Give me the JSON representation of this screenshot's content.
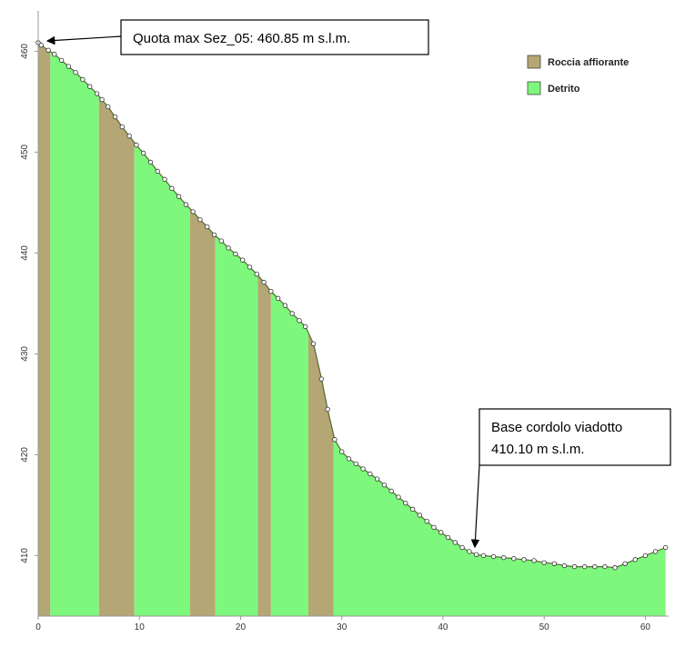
{
  "chart_data": {
    "type": "profile",
    "xlim": [
      0,
      62.3
    ],
    "ylim": [
      404,
      464
    ],
    "xticks": [
      0,
      10,
      20,
      30,
      40,
      50,
      60
    ],
    "yticks": [
      410,
      420,
      430,
      440,
      450,
      460
    ],
    "series": [
      {
        "name": "Roccia affiorante",
        "color": "#b5a675"
      },
      {
        "name": "Detrito",
        "color": "#7df87c"
      }
    ],
    "zones": [
      {
        "series": 0,
        "x": [
          0,
          1.2
        ]
      },
      {
        "series": 1,
        "x": [
          1.2,
          6
        ]
      },
      {
        "series": 0,
        "x": [
          6,
          9.5
        ]
      },
      {
        "series": 1,
        "x": [
          9.5,
          15
        ]
      },
      {
        "series": 0,
        "x": [
          15,
          17.5
        ]
      },
      {
        "series": 1,
        "x": [
          17.5,
          21.7
        ]
      },
      {
        "series": 0,
        "x": [
          21.7,
          23
        ]
      },
      {
        "series": 1,
        "x": [
          23,
          26.7
        ]
      },
      {
        "series": 0,
        "x": [
          26.7,
          29.2
        ]
      },
      {
        "series": 1,
        "x": [
          29.2,
          62.3
        ]
      }
    ],
    "profile": {
      "x": [
        0,
        0.3,
        1,
        1.6,
        2.3,
        3,
        3.7,
        4.4,
        5.1,
        5.8,
        6.3,
        6.9,
        7.6,
        8.3,
        9,
        9.7,
        10.4,
        11.1,
        11.8,
        12.5,
        13.2,
        13.9,
        14.6,
        15.3,
        16,
        16.7,
        17.4,
        18.1,
        18.8,
        19.5,
        20.2,
        20.9,
        21.6,
        22.3,
        23,
        23.7,
        24.4,
        25.1,
        25.8,
        26.4,
        27.2,
        28,
        28.6,
        29.3,
        30,
        30.7,
        31.4,
        32.1,
        32.8,
        33.5,
        34.2,
        34.9,
        35.6,
        36.3,
        37,
        37.7,
        38.4,
        39.1,
        39.8,
        40.5,
        41.2,
        41.9,
        42.6,
        43.3,
        44,
        45,
        46,
        47,
        48,
        49,
        50,
        51,
        52,
        53,
        54,
        55,
        56,
        57,
        58,
        59,
        60,
        61,
        62
      ],
      "y": [
        460.85,
        460.6,
        460.1,
        459.7,
        459.1,
        458.5,
        457.9,
        457.2,
        456.5,
        455.8,
        455.2,
        454.5,
        453.5,
        452.5,
        451.6,
        450.7,
        449.9,
        449,
        448.1,
        447.3,
        446.4,
        445.6,
        444.8,
        444.1,
        443.3,
        442.6,
        441.8,
        441.2,
        440.5,
        439.9,
        439.3,
        438.6,
        437.9,
        437.1,
        436.2,
        435.5,
        434.8,
        434,
        433.3,
        432.7,
        431,
        427.5,
        424.5,
        421.5,
        420.3,
        419.6,
        419.1,
        418.6,
        418.1,
        417.6,
        417,
        416.4,
        415.8,
        415.2,
        414.6,
        414,
        413.4,
        412.8,
        412.3,
        411.8,
        411.3,
        410.8,
        410.4,
        410.1,
        410,
        409.9,
        409.8,
        409.7,
        409.6,
        409.5,
        409.3,
        409.2,
        409,
        408.9,
        408.9,
        408.9,
        408.9,
        408.8,
        409.2,
        409.6,
        410,
        410.4,
        410.8
      ]
    },
    "annotations": [
      {
        "lines": [
          "Quota max Sez_05:  460.85 m s.l.m."
        ]
      },
      {
        "lines": [
          "Base cordolo viadotto",
          "410.10 m s.l.m."
        ]
      }
    ]
  }
}
